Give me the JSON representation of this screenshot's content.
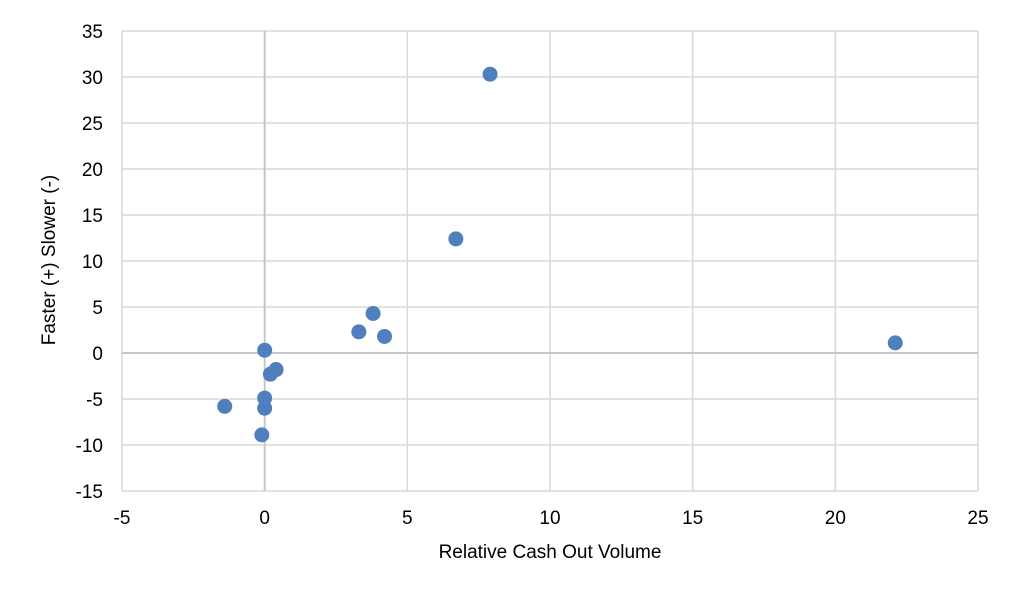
{
  "chart_data": {
    "type": "scatter",
    "title": "",
    "xlabel": "Relative Cash Out Volume",
    "ylabel": "Faster (+) Slower (-)",
    "xlim": [
      -5,
      25
    ],
    "ylim": [
      -15,
      35
    ],
    "xticks": [
      -5,
      0,
      5,
      10,
      15,
      20,
      25
    ],
    "yticks": [
      -15,
      -10,
      -5,
      0,
      5,
      10,
      15,
      20,
      25,
      30,
      35
    ],
    "grid": true,
    "legend": "none",
    "colors": {
      "marker": "#4f7fbd",
      "grid": "#d9d9d9",
      "zero_line": "#c6c6c6"
    },
    "series": [
      {
        "points": [
          {
            "x": 7.9,
            "y": 30.3
          },
          {
            "x": 6.7,
            "y": 12.4
          },
          {
            "x": 3.8,
            "y": 4.3
          },
          {
            "x": 3.3,
            "y": 2.3
          },
          {
            "x": 4.2,
            "y": 1.8
          },
          {
            "x": 22.1,
            "y": 1.1
          },
          {
            "x": 0.0,
            "y": 0.3
          },
          {
            "x": 0.4,
            "y": -1.8
          },
          {
            "x": 0.2,
            "y": -2.3
          },
          {
            "x": 0.0,
            "y": -4.9
          },
          {
            "x": 0.0,
            "y": -6.0
          },
          {
            "x": -1.4,
            "y": -5.8
          },
          {
            "x": -0.1,
            "y": -8.9
          }
        ]
      }
    ]
  }
}
